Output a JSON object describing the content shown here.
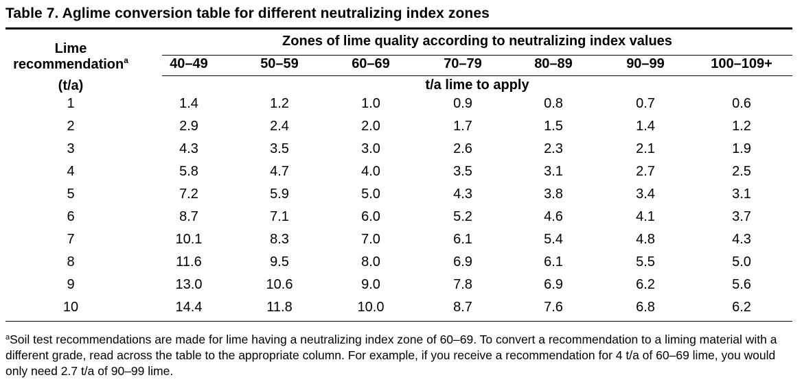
{
  "title": "Table 7. Aglime conversion table for different neutralizing index zones",
  "header": {
    "zones_caption": "Zones of lime quality according to neutralizing index values",
    "lime_label_line1": "Lime",
    "lime_label_line2": "recommendation",
    "lime_label_footnote_mark": "a",
    "unit_label": "(t/a)",
    "apply_caption": "t/a lime to apply",
    "zones": [
      "40–49",
      "50–59",
      "60–69",
      "70–79",
      "80–89",
      "90–99",
      "100–109+"
    ]
  },
  "rows": [
    {
      "rec": "1",
      "values": [
        "1.4",
        "1.2",
        "1.0",
        "0.9",
        "0.8",
        "0.7",
        "0.6"
      ]
    },
    {
      "rec": "2",
      "values": [
        "2.9",
        "2.4",
        "2.0",
        "1.7",
        "1.5",
        "1.4",
        "1.2"
      ]
    },
    {
      "rec": "3",
      "values": [
        "4.3",
        "3.5",
        "3.0",
        "2.6",
        "2.3",
        "2.1",
        "1.9"
      ]
    },
    {
      "rec": "4",
      "values": [
        "5.8",
        "4.7",
        "4.0",
        "3.5",
        "3.1",
        "2.7",
        "2.5"
      ]
    },
    {
      "rec": "5",
      "values": [
        "7.2",
        "5.9",
        "5.0",
        "4.3",
        "3.8",
        "3.4",
        "3.1"
      ]
    },
    {
      "rec": "6",
      "values": [
        "8.7",
        "7.1",
        "6.0",
        "5.2",
        "4.6",
        "4.1",
        "3.7"
      ]
    },
    {
      "rec": "7",
      "values": [
        "10.1",
        "8.3",
        "7.0",
        "6.1",
        "5.4",
        "4.8",
        "4.3"
      ]
    },
    {
      "rec": "8",
      "values": [
        "11.6",
        "9.5",
        "8.0",
        "6.9",
        "6.1",
        "5.5",
        "5.0"
      ]
    },
    {
      "rec": "9",
      "values": [
        "13.0",
        "10.6",
        "9.0",
        "7.8",
        "6.9",
        "6.2",
        "5.6"
      ]
    },
    {
      "rec": "10",
      "values": [
        "14.4",
        "11.8",
        "10.0",
        "8.7",
        "7.6",
        "6.8",
        "6.2"
      ]
    }
  ],
  "footnote": {
    "mark": "a",
    "text": "Soil test recommendations are made for lime having a neutralizing index zone of 60–69. To convert a recommendation to a liming material with a different grade, read across the table to the appropriate column. For example, if you receive a recommendation for 4 t/a of 60–69 lime, you would only need 2.7 t/a of 90–99 lime."
  }
}
